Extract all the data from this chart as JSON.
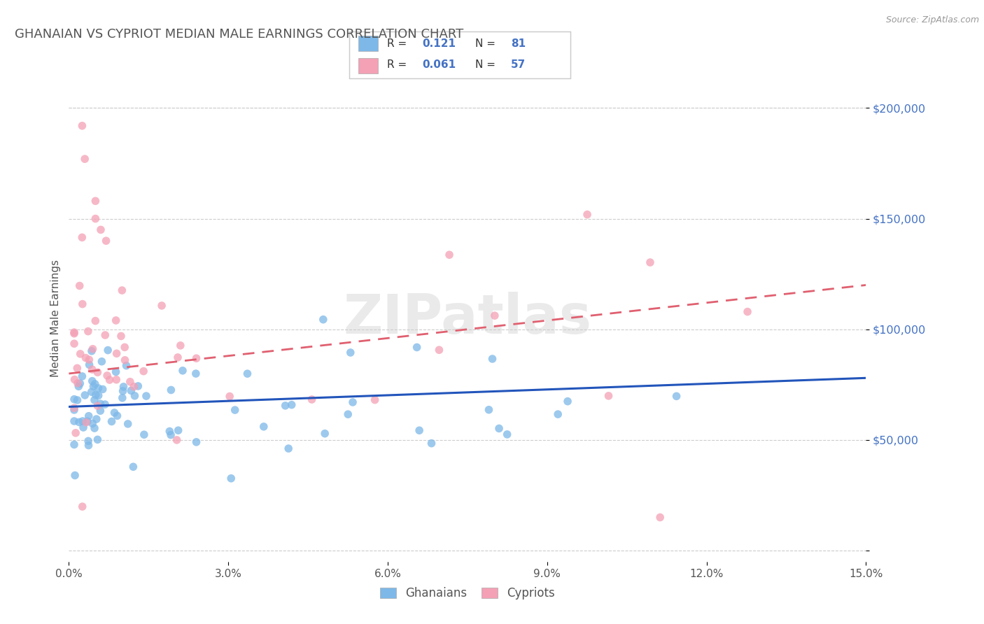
{
  "title": "GHANAIAN VS CYPRIOT MEDIAN MALE EARNINGS CORRELATION CHART",
  "source_text": "Source: ZipAtlas.com",
  "ylabel": "Median Male Earnings",
  "xlim": [
    0.0,
    0.15
  ],
  "ylim": [
    -5000,
    215000
  ],
  "yticks": [
    0,
    50000,
    100000,
    150000,
    200000
  ],
  "ytick_labels": [
    "",
    "$50,000",
    "$100,000",
    "$150,000",
    "$200,000"
  ],
  "xticks": [
    0.0,
    0.03,
    0.06,
    0.09,
    0.12,
    0.15
  ],
  "xtick_labels": [
    "0.0%",
    "3.0%",
    "6.0%",
    "9.0%",
    "12.0%",
    "15.0%"
  ],
  "title_color": "#555555",
  "axis_color": "#4472c4",
  "background_color": "#ffffff",
  "watermark": "ZIPatlas",
  "ghanaian_color": "#7db8e8",
  "cypriot_color": "#f4a0b5",
  "ghanaian_line_color": "#2255bb",
  "cypriot_line_color": "#e06070",
  "legend_r_ghanaian": "0.121",
  "legend_n_ghanaian": "81",
  "legend_r_cypriot": "0.061",
  "legend_n_cypriot": "57",
  "gh_line_x0": 0.0,
  "gh_line_y0": 65000,
  "gh_line_x1": 0.15,
  "gh_line_y1": 78000,
  "cy_line_x0": 0.0,
  "cy_line_y0": 80000,
  "cy_line_x1": 0.15,
  "cy_line_y1": 120000
}
